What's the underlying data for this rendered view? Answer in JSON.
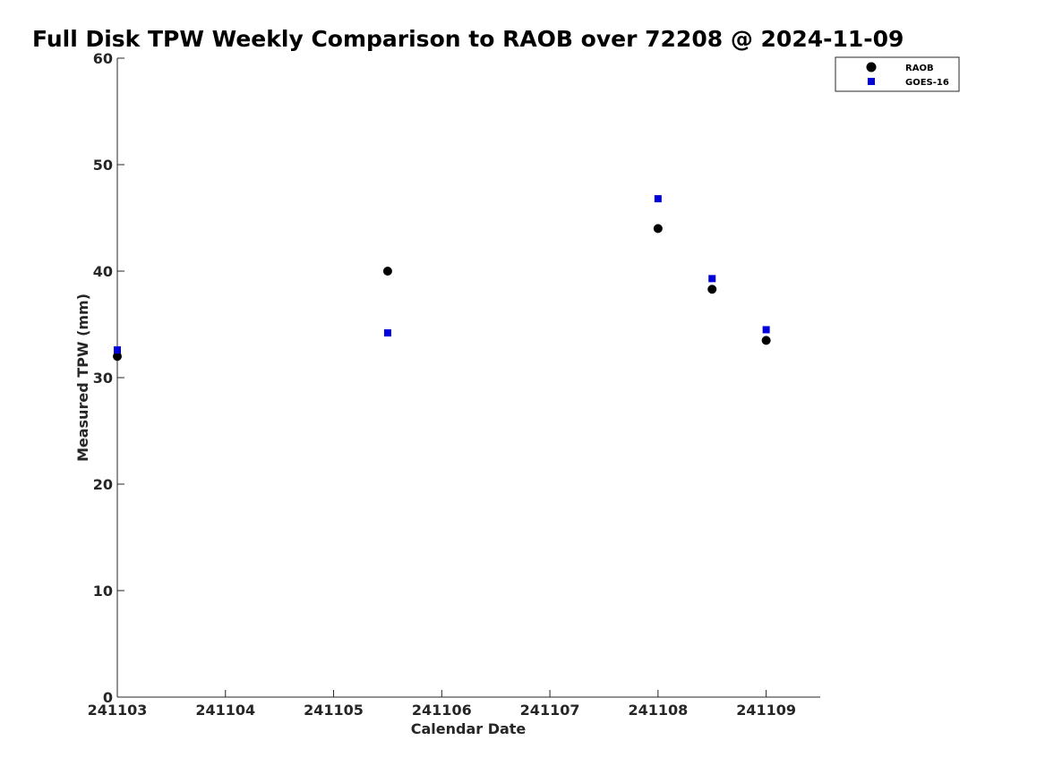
{
  "chart_data": {
    "type": "scatter",
    "title": "Full Disk TPW Weekly Comparison to RAOB over 72208 @ 2024-11-09",
    "xlabel": "Calendar Date",
    "ylabel": "Measured TPW (mm)",
    "xlim": [
      241103,
      241109.5
    ],
    "ylim": [
      0,
      60
    ],
    "x_ticks": [
      241103,
      241104,
      241105,
      241106,
      241107,
      241108,
      241109
    ],
    "x_tick_labels": [
      "241103",
      "241104",
      "241105",
      "241106",
      "241107",
      "241108",
      "241109"
    ],
    "y_ticks": [
      0,
      10,
      20,
      30,
      40,
      50,
      60
    ],
    "y_tick_labels": [
      "0",
      "10",
      "20",
      "30",
      "40",
      "50",
      "60"
    ],
    "grid": false,
    "legend_position": "top-right",
    "series": [
      {
        "name": "RAOB",
        "marker": "circle",
        "color": "#000000",
        "points": [
          {
            "x": 241103.0,
            "y": 32.0
          },
          {
            "x": 241105.5,
            "y": 40.0
          },
          {
            "x": 241108.0,
            "y": 44.0
          },
          {
            "x": 241108.5,
            "y": 38.3
          },
          {
            "x": 241109.0,
            "y": 33.5
          }
        ]
      },
      {
        "name": "GOES-16",
        "marker": "square",
        "color": "#0000dd",
        "points": [
          {
            "x": 241103.0,
            "y": 32.6
          },
          {
            "x": 241105.5,
            "y": 34.2
          },
          {
            "x": 241108.0,
            "y": 46.8
          },
          {
            "x": 241108.5,
            "y": 39.3
          },
          {
            "x": 241109.0,
            "y": 34.5
          }
        ]
      }
    ]
  }
}
